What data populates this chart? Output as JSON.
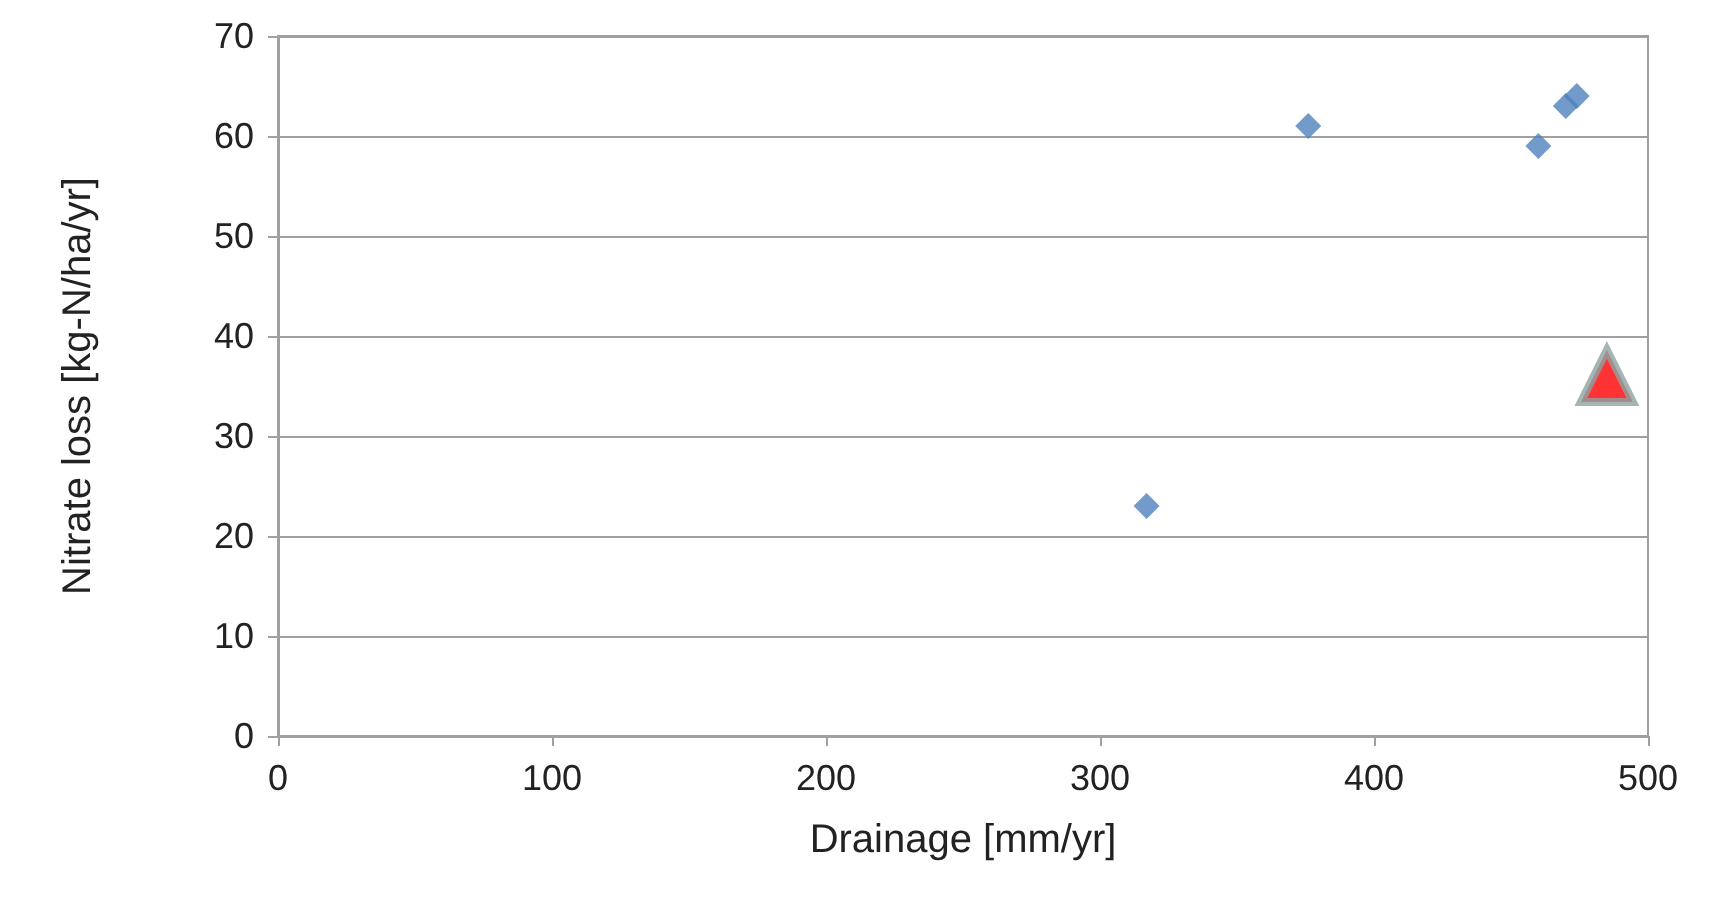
{
  "chart_data": {
    "type": "scatter",
    "xlabel": "Drainage [mm/yr]",
    "ylabel": "Nitrate loss [kg-N/ha/yr]",
    "series": [
      {
        "color": "#4f81bd",
        "marker": "diamond",
        "x": [
          317,
          376,
          460,
          470,
          474
        ],
        "values": [
          23,
          61,
          59,
          63,
          64
        ]
      },
      {
        "color": "#ff0000",
        "marker": "triangle",
        "x": [
          485
        ],
        "values": [
          36
        ]
      }
    ],
    "xlim": [
      0,
      500
    ],
    "xticks": [
      0,
      100,
      200,
      300,
      400,
      500
    ],
    "ylim": [
      0,
      70
    ],
    "yticks": [
      0,
      10,
      20,
      30,
      40,
      50,
      60,
      70
    ],
    "grid": "y"
  }
}
